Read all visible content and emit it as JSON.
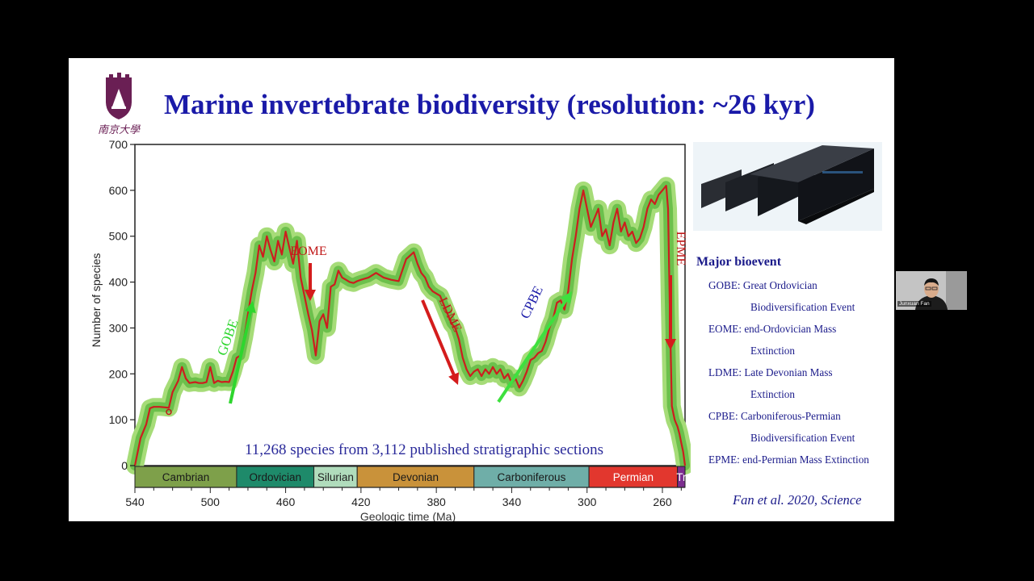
{
  "slide": {
    "title": "Marine invertebrate biodiversity (resolution: ~26 kyr)",
    "logo_text": "南京大學",
    "citation": "Fan et al. 2020, Science"
  },
  "legend": {
    "title": "Major bioevent",
    "items": [
      {
        "abbr": "GOBE",
        "line1": "GOBE: Great Ordovician",
        "line2": "Biodiversification Event"
      },
      {
        "abbr": "EOME",
        "line1": "EOME: end-Ordovician Mass",
        "line2": "Extinction"
      },
      {
        "abbr": "LDME",
        "line1": "LDME: Late Devonian Mass",
        "line2": "Extinction"
      },
      {
        "abbr": "CPBE",
        "line1": "CPBE: Carboniferous-Permian",
        "line2": "Biodiversification Event"
      },
      {
        "abbr": "EPME",
        "line1": "EPME: end-Permian Mass Extinction",
        "line2": ""
      }
    ]
  },
  "webcam": {
    "name": "Junxuan Fan"
  },
  "chart_data": {
    "type": "line",
    "xlabel": "Geologic time (Ma)",
    "ylabel": "Number of species",
    "xlim": [
      540,
      248
    ],
    "ylim": [
      0,
      700
    ],
    "x_ticks": [
      540,
      500,
      460,
      420,
      380,
      340,
      300,
      260
    ],
    "y_ticks": [
      0,
      100,
      200,
      300,
      400,
      500,
      600,
      700
    ],
    "annotation": "11,268 species from 3,112 published stratigraphic sections",
    "series": [
      {
        "color": "#cc1e1e",
        "x": [
          540,
          537,
          534,
          532,
          530,
          527,
          524,
          522,
          520,
          517,
          515,
          513,
          511,
          508,
          506,
          504,
          502,
          500,
          498,
          496,
          494,
          492,
          490,
          488,
          486,
          484,
          482,
          480,
          478,
          476,
          474,
          472,
          470,
          468,
          466,
          464,
          462,
          460,
          458,
          456,
          454,
          452,
          450,
          448,
          446,
          444,
          442,
          440,
          438,
          436,
          434,
          432,
          430,
          428,
          426,
          424,
          422,
          420,
          416,
          412,
          408,
          404,
          400,
          396,
          392,
          390,
          388,
          386,
          384,
          382,
          380,
          378,
          376,
          374,
          372,
          370,
          368,
          366,
          364,
          362,
          360,
          358,
          356,
          354,
          352,
          350,
          348,
          346,
          344,
          342,
          340,
          338,
          336,
          334,
          332,
          330,
          328,
          326,
          324,
          322,
          320,
          318,
          316,
          314,
          312,
          310,
          308,
          306,
          304,
          302,
          300,
          298,
          296,
          294,
          292,
          290,
          288,
          286,
          284,
          282,
          280,
          278,
          276,
          274,
          272,
          270,
          268,
          266,
          264,
          262,
          260,
          258,
          257,
          256,
          255,
          254,
          253.5,
          253,
          252,
          251,
          250,
          249,
          248
        ],
        "y": [
          0,
          60,
          90,
          125,
          128,
          128,
          127,
          126,
          160,
          185,
          215,
          190,
          180,
          182,
          180,
          180,
          182,
          215,
          180,
          185,
          182,
          183,
          182,
          205,
          235,
          240,
          280,
          330,
          380,
          420,
          480,
          455,
          500,
          470,
          445,
          490,
          460,
          510,
          475,
          440,
          490,
          410,
          370,
          330,
          295,
          240,
          315,
          330,
          300,
          390,
          395,
          425,
          410,
          405,
          400,
          398,
          402,
          405,
          410,
          420,
          410,
          405,
          402,
          450,
          465,
          440,
          420,
          410,
          390,
          380,
          375,
          370,
          350,
          330,
          310,
          300,
          275,
          235,
          210,
          195,
          205,
          210,
          195,
          210,
          200,
          215,
          200,
          210,
          190,
          200,
          180,
          190,
          170,
          185,
          205,
          230,
          235,
          245,
          250,
          270,
          300,
          320,
          355,
          360,
          340,
          380,
          450,
          500,
          560,
          600,
          560,
          520,
          540,
          560,
          500,
          515,
          480,
          530,
          560,
          510,
          530,
          500,
          510,
          485,
          495,
          520,
          560,
          580,
          570,
          590,
          600,
          610,
          560,
          330,
          130,
          110,
          100,
          95,
          85,
          70,
          50,
          30,
          0
        ]
      }
    ],
    "bioevent_labels": [
      {
        "text": "GOBE",
        "color": "#2ed62e"
      },
      {
        "text": "EOME",
        "color": "#c01818"
      },
      {
        "text": "LDME",
        "color": "#c01818"
      },
      {
        "text": "CPBE",
        "color": "#1a1aa8"
      },
      {
        "text": "EPME",
        "color": "#c01818"
      }
    ],
    "periods": [
      {
        "name": "Cambrian",
        "start": 540,
        "end": 486,
        "color": "#7ea04a"
      },
      {
        "name": "Ordovician",
        "start": 486,
        "end": 445,
        "color": "#1e8a6a"
      },
      {
        "name": "Silurian",
        "start": 445,
        "end": 422,
        "color": "#b0dcbc"
      },
      {
        "name": "Devonian",
        "start": 422,
        "end": 360,
        "color": "#c9923a"
      },
      {
        "name": "Carboniferous",
        "start": 360,
        "end": 299,
        "color": "#6faea8"
      },
      {
        "name": "Permian",
        "start": 299,
        "end": 252,
        "color": "#e2372e"
      },
      {
        "name": "Tr",
        "start": 252,
        "end": 248,
        "color": "#7b2d8e"
      }
    ]
  }
}
